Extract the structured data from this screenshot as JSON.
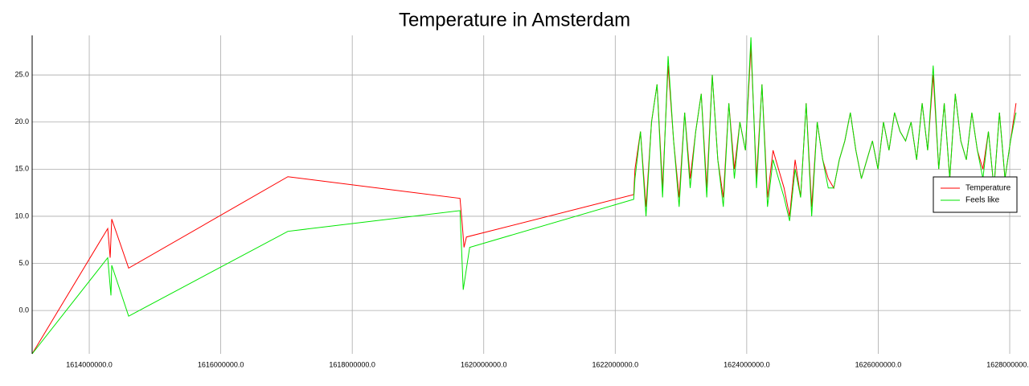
{
  "chart_data": {
    "type": "line",
    "title": "Temperature in Amsterdam",
    "xlim": [
      1613131500,
      1628171000
    ],
    "ylim": [
      -4.6,
      29.2
    ],
    "xticks": [
      {
        "value": 1614000000,
        "label": "1614000000.0"
      },
      {
        "value": 1616000000,
        "label": "1616000000.0"
      },
      {
        "value": 1618000000,
        "label": "1618000000.0"
      },
      {
        "value": 1620000000,
        "label": "1620000000.0"
      },
      {
        "value": 1622000000,
        "label": "1622000000.0"
      },
      {
        "value": 1624000000,
        "label": "1624000000.0"
      },
      {
        "value": 1626000000,
        "label": "1626000000.0"
      },
      {
        "value": 1628000000,
        "label": "1628000000.0"
      }
    ],
    "yticks": [
      {
        "value": 0,
        "label": "0.0"
      },
      {
        "value": 5,
        "label": "5.0"
      },
      {
        "value": 10,
        "label": "10.0"
      },
      {
        "value": 15,
        "label": "15.0"
      },
      {
        "value": 20,
        "label": "20.0"
      },
      {
        "value": 25,
        "label": "25.0"
      }
    ],
    "grid": true,
    "legend": "right",
    "series": [
      {
        "name": "Temperature",
        "color": "#ff0000",
        "x": [
          1613131500,
          1614281000,
          1614318000,
          1614342000,
          1614599000,
          1617021000,
          1619639000,
          1619675000,
          1619700000,
          1619737000,
          1622281000,
          1622300000,
          1622384000,
          1622468000,
          1622552000,
          1622636000,
          1622720000,
          1622804000,
          1622888000,
          1622972000,
          1623056000,
          1623140000,
          1623224000,
          1623308000,
          1623392000,
          1623476000,
          1623560000,
          1623644000,
          1623728000,
          1623812000,
          1623896000,
          1623980000,
          1624064000,
          1624148000,
          1624232000,
          1624316000,
          1624400000,
          1624484000,
          1624568000,
          1624652000,
          1624736000,
          1624820000,
          1624904000,
          1624988000,
          1625072000,
          1625156000,
          1625240000,
          1625324000,
          1625408000,
          1625492000,
          1625576000,
          1625660000,
          1625744000,
          1625828000,
          1625912000,
          1625996000,
          1626080000,
          1626164000,
          1626248000,
          1626332000,
          1626416000,
          1626500000,
          1626584000,
          1626668000,
          1626752000,
          1626836000,
          1626920000,
          1627004000,
          1627088000,
          1627172000,
          1627256000,
          1627340000,
          1627424000,
          1627508000,
          1627592000,
          1627676000,
          1627760000,
          1627844000,
          1627928000,
          1628012000,
          1628096000
        ],
        "values": [
          -4.6,
          8.7,
          5.6,
          9.7,
          4.5,
          14.2,
          11.9,
          9.0,
          6.7,
          7.8,
          12.3,
          15,
          19,
          11,
          20,
          24,
          13,
          26,
          18,
          12,
          21,
          14,
          19,
          23,
          13,
          25,
          16,
          12,
          22,
          15,
          20,
          17,
          28,
          14,
          24,
          12,
          17,
          15,
          13,
          10,
          16,
          12,
          22,
          11,
          20,
          16,
          14,
          13,
          16,
          18,
          21,
          17,
          14,
          16,
          18,
          15,
          20,
          17,
          21,
          19,
          18,
          20,
          16,
          22,
          17,
          25,
          15,
          22,
          14,
          23,
          18,
          16,
          21,
          17,
          15,
          19,
          13,
          21,
          14,
          18,
          22
        ]
      },
      {
        "name": "Feels like",
        "color": "#00e600",
        "x": [
          1613131500,
          1614281000,
          1614330000,
          1614342000,
          1614599000,
          1617021000,
          1619639000,
          1619688000,
          1619786000,
          1622281000,
          1622300000,
          1622384000,
          1622468000,
          1622552000,
          1622636000,
          1622720000,
          1622804000,
          1622888000,
          1622972000,
          1623056000,
          1623140000,
          1623224000,
          1623308000,
          1623392000,
          1623476000,
          1623560000,
          1623644000,
          1623728000,
          1623812000,
          1623896000,
          1623980000,
          1624064000,
          1624148000,
          1624232000,
          1624316000,
          1624400000,
          1624484000,
          1624568000,
          1624652000,
          1624736000,
          1624820000,
          1624904000,
          1624988000,
          1625072000,
          1625156000,
          1625240000,
          1625324000,
          1625408000,
          1625492000,
          1625576000,
          1625660000,
          1625744000,
          1625828000,
          1625912000,
          1625996000,
          1626080000,
          1626164000,
          1626248000,
          1626332000,
          1626416000,
          1626500000,
          1626584000,
          1626668000,
          1626752000,
          1626836000,
          1626920000,
          1627004000,
          1627088000,
          1627172000,
          1627256000,
          1627340000,
          1627424000,
          1627508000,
          1627592000,
          1627676000,
          1627760000,
          1627844000,
          1627928000,
          1628012000,
          1628096000
        ],
        "values": [
          -4.6,
          5.6,
          1.6,
          4.8,
          -0.6,
          8.4,
          10.6,
          2.2,
          6.7,
          11.8,
          14,
          19,
          10,
          20,
          24,
          12,
          27,
          18,
          11,
          21,
          13,
          19,
          23,
          12,
          25,
          16,
          11,
          22,
          14,
          20,
          17,
          29,
          13,
          24,
          11,
          16,
          14,
          12,
          9.5,
          15,
          12,
          22,
          10,
          20,
          16,
          13,
          13,
          16,
          18,
          21,
          17,
          14,
          16,
          18,
          15,
          20,
          17,
          21,
          19,
          18,
          20,
          16,
          22,
          17,
          26,
          15,
          22,
          14,
          23,
          18,
          16,
          21,
          17,
          14,
          19,
          13,
          21,
          14,
          18,
          21
        ]
      }
    ]
  }
}
